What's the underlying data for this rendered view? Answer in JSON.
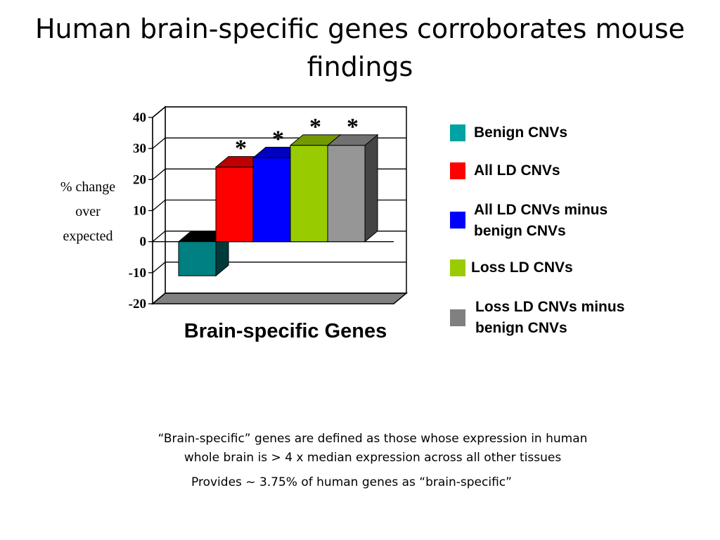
{
  "slide": {
    "title": "Human brain-specific genes corroborates mouse findings",
    "footnote_1_line1": "“Brain-specific” genes are defined as those whose expression in human",
    "footnote_1_line2": "whole brain is > 4 x median expression across all other tissues",
    "footnote_2": "Provides ~ 3.75% of human genes as “brain-specific”"
  },
  "chart_data": {
    "type": "bar",
    "xlabel": "Brain-specific Genes",
    "ylabel_lines": [
      "% change",
      "over",
      "expected"
    ],
    "ylim": [
      -20,
      40
    ],
    "yticks": [
      "40",
      "30",
      "20",
      "10",
      "0",
      "-10",
      "-20"
    ],
    "grid": true,
    "legend_placement": "right",
    "series": [
      {
        "name": "Benign CNVs",
        "value": -11,
        "color": "#008080",
        "significant": false
      },
      {
        "name": "All LD CNVs",
        "value": 24,
        "color": "#ff0000",
        "significant": true
      },
      {
        "name": "All LD CNVs minus benign CNVs",
        "value": 27,
        "color": "#0000ff",
        "significant": true
      },
      {
        "name": "Loss LD CNVs",
        "value": 31,
        "color": "#99cc00",
        "significant": true
      },
      {
        "name": "Loss LD CNVs minus benign CNVs",
        "value": 31,
        "color": "#969696",
        "significant": true
      }
    ],
    "significance_marker": "*"
  },
  "legend": [
    {
      "line1": "Benign CNVs",
      "line2": "",
      "color": "#00a3a3"
    },
    {
      "line1": "All LD CNVs",
      "line2": "",
      "color": "#ff0000"
    },
    {
      "line1": "All LD CNVs minus",
      "line2": "benign CNVs",
      "color": "#0000ff"
    },
    {
      "line1": "Loss LD CNVs",
      "line2": "",
      "color": "#99cc00"
    },
    {
      "line1": "Loss LD CNVs minus",
      "line2": "benign CNVs",
      "color": "#808080"
    }
  ]
}
